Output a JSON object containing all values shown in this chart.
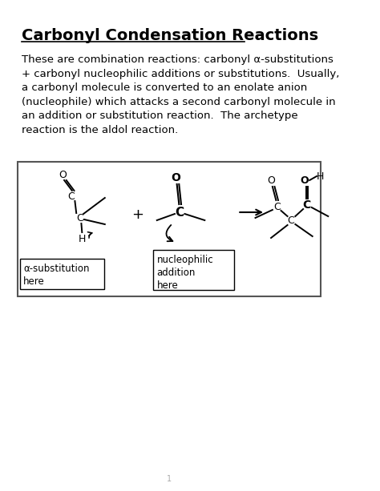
{
  "title": "Carbonyl Condensation Reactions",
  "body_text": "These are combination reactions: carbonyl α-substitutions\n+ carbonyl nucleophilic additions or substitutions.  Usually,\na carbonyl molecule is converted to an enolate anion\n(nucleophile) which attacks a second carbonyl molecule in\nan addition or substitution reaction.  The archetype\nreaction is the aldol reaction.",
  "page_number": "1",
  "bg_color": "#ffffff",
  "text_color": "#000000",
  "title_fontsize": 14,
  "body_fontsize": 9.5,
  "box_border_color": "#555555",
  "molecule1_label": "α-substitution\nhere",
  "molecule2_label": "nucleophilic\naddition\nhere"
}
